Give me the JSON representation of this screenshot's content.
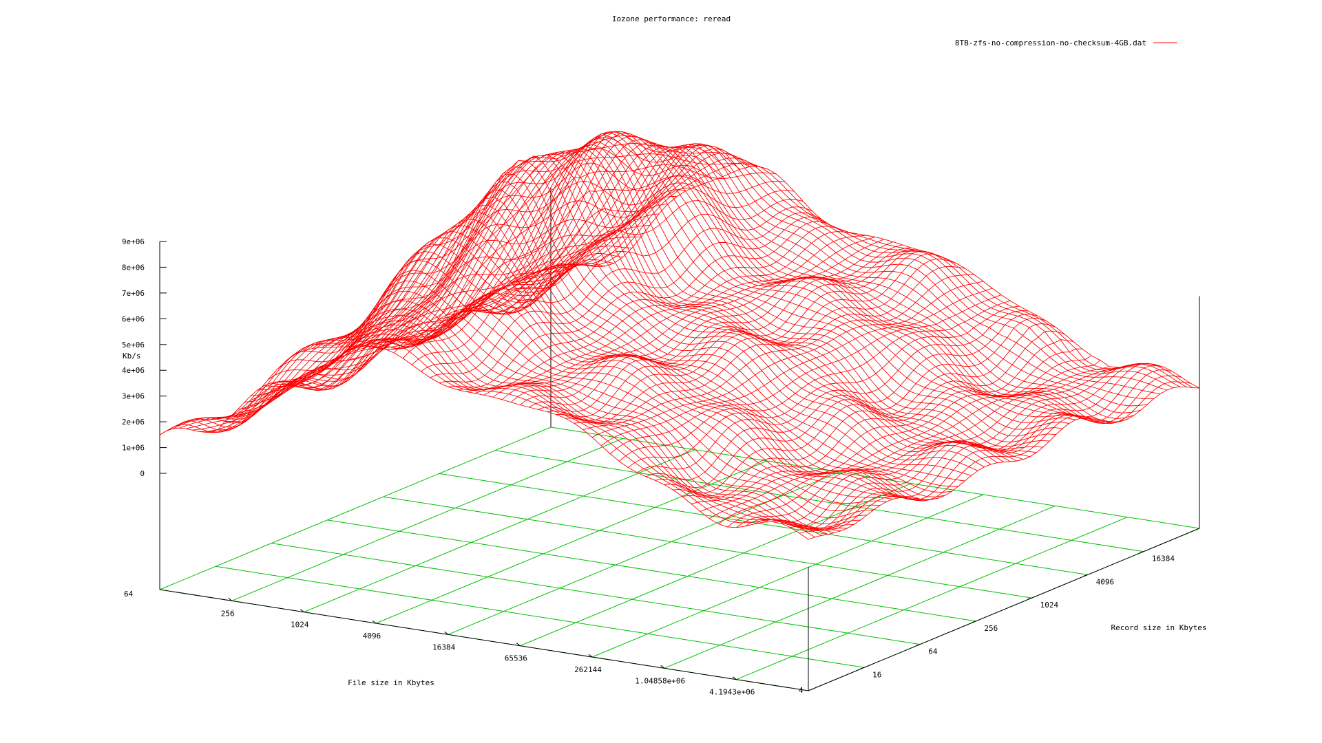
{
  "chart_data": {
    "type": "surface",
    "title": "Iozone performance: reread",
    "legend": {
      "label": "8TB-zfs-no-compression-no-checksum-4GB.dat",
      "color": "#ff0000",
      "position": "top-right"
    },
    "xlabel": "File size in Kbytes",
    "ylabel": "Record size in Kbytes",
    "zlabel": "Kb/s",
    "x_ticks": [
      "256",
      "1024",
      "4096",
      "16384",
      "65536",
      "262144",
      "1.04858e+06",
      "4.1943e+06"
    ],
    "x_corner_label": "64",
    "y_ticks": [
      "16",
      "64",
      "256",
      "1024",
      "4096",
      "16384"
    ],
    "y_corner_label": "4",
    "z_ticks": [
      "0",
      "1e+06",
      "2e+06",
      "3e+06",
      "4e+06",
      "5e+06",
      "6e+06",
      "7e+06",
      "8e+06",
      "9e+06"
    ],
    "xlim_log2": [
      6,
      22
    ],
    "ylim_log2": [
      2,
      14
    ],
    "zlim": [
      0,
      9000000
    ],
    "grid": true,
    "surface_color": "#ff0000",
    "grid_color": "#00c000",
    "peak_kbps": 10800000,
    "plateau_kbps": 4800000,
    "low_file_kbps": 1000000
  }
}
